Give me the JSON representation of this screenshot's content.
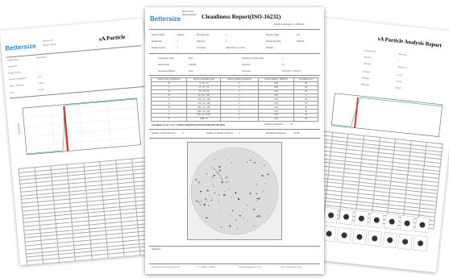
{
  "brand": "Bettersize",
  "center_sheet": {
    "title": "Cleanliness Report(ISO-16232)",
    "header_info": [
      "BeTester-SS",
      "Image Analysis"
    ],
    "size_range_label": "Particle Size Range: 1~10000 μm",
    "info_rows": [
      [
        "Sample Name:",
        "Sample",
        "Measured By:",
        "1",
        "Property Type:",
        "xxx"
      ],
      [
        "Sample ID:",
        "1",
        "Operator:",
        "1",
        "Dissolvent Type:",
        "Dustpan"
      ],
      [
        "Sample Source:",
        "1",
        "Test Date:",
        "2023-06-15 11:13:04",
        "Remark:",
        ""
      ]
    ],
    "component_rows": [
      [
        "Component Type:",
        "level",
        "Number of Components:",
        "1"
      ],
      [
        "Wetted Area:",
        "120.000",
        "Operator:",
        "1/2"
      ],
      [
        "Extraction Method:",
        "level",
        "Test Date:",
        "2023-06-17 10:04:51"
      ]
    ],
    "table_headers": [
      "Particle Size Classification",
      "Particle Size Range (μm)",
      "Particle Number (measured)",
      "Particle number (1000cm²)",
      "Cleanliness level"
    ],
    "table_rows": [
      [
        "B",
        "5 ≤ D < 15",
        "0",
        "0.00",
        "00"
      ],
      [
        "C",
        "15 ≤ D < 25",
        "0",
        "0.00",
        "00"
      ],
      [
        "D",
        "25 ≤ D < 50",
        "0",
        "0.00",
        "00"
      ],
      [
        "E",
        "50 ≤ D < 100",
        "3",
        "2.50",
        "2"
      ],
      [
        "F",
        "100 ≤ D < 150",
        "0",
        "0.00",
        "00"
      ],
      [
        "G",
        "150 ≤ D < 200",
        "0",
        "0.00",
        "00"
      ],
      [
        "H",
        "200 ≤ D < 400",
        "0",
        "0.00",
        "00"
      ],
      [
        "I",
        "400 ≤ D < 600",
        "0",
        "0.00",
        "00"
      ],
      [
        "J",
        "600 ≤ D < 1000",
        "0",
        "0.00",
        "00"
      ],
      [
        "K",
        "1000 ≤ D",
        "0",
        "0.00",
        "00"
      ]
    ],
    "cleanliness_line": "Cleanliness level: CCC=A(B00/C00/D00/E2/F00/G00/H00/I00/J00/K00)",
    "particles_label": "Number of Particles:",
    "particles_value": "10",
    "fiber_label": "Number of Fiber Particles:",
    "fiber_value": "0",
    "metal_label": "Number of Metallic Particles:",
    "metal_value": "0",
    "diameter_label": "Maximum Value(μm):",
    "diameter_value": "54.160",
    "signature_label": "Signature:",
    "footer": [
      "Dandong Bettersize Instruments Ltd.",
      "Tel: +86-0415-6163800",
      "E-mail: info@bettersize.com",
      "Web: www.bettersize.com"
    ]
  },
  "left_sheet": {
    "title": "sA Particle",
    "logo_sub": [
      "BeTester-SS",
      "Image Analysis"
    ],
    "info": [
      "Sample Name:",
      "Sample ID:",
      "Sample Source:",
      "Number of Particles:",
      "Mean Circularity:",
      "Span:"
    ],
    "values": [
      "Glass Beads",
      "1",
      "",
      "1147",
      "0.908",
      "0.978"
    ],
    "axis_label": "Cumul.(%)"
  },
  "right_sheet": {
    "title": "sA Particle Analysis Report",
    "info": [
      "Measured By:",
      "Operator:",
      "Test Date:",
      "D10(μm):",
      "D50(μm):",
      "D90(μm):"
    ],
    "values": [
      "Bettersize",
      "1",
      "2023-06-15",
      "10.237",
      "31.058",
      "80.361"
    ]
  },
  "colors": {
    "brand": "#2f86c9",
    "curve_red": "#d83a2e",
    "curve_teal": "#2aa8a8"
  }
}
